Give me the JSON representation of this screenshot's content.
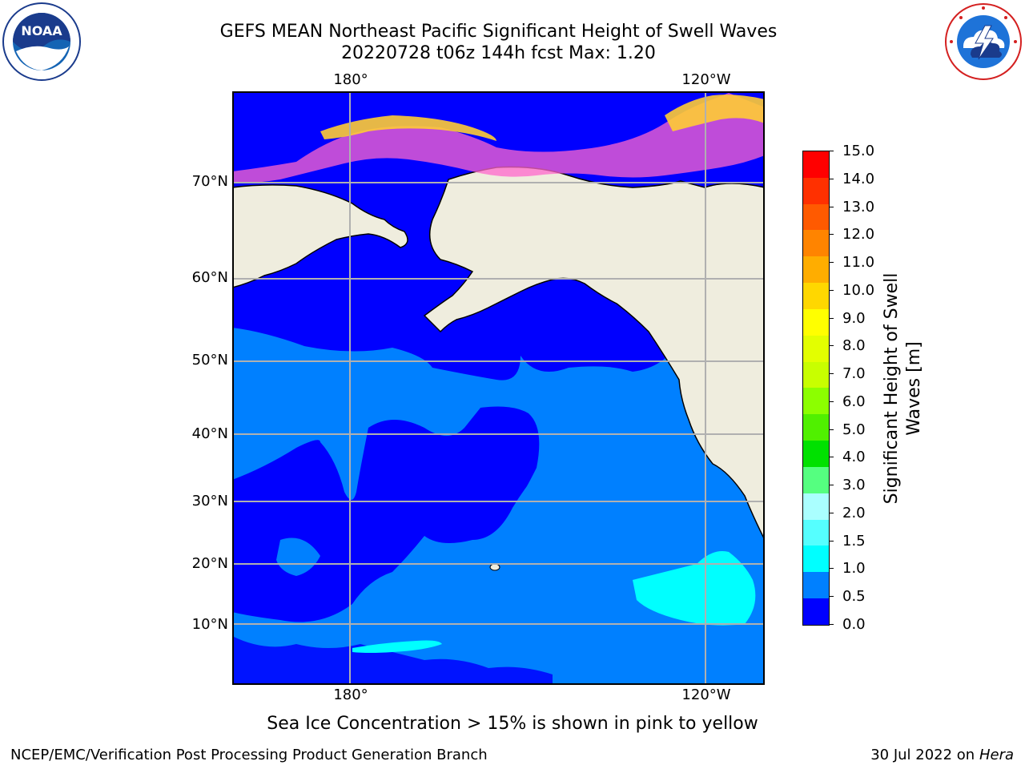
{
  "header": {
    "title_line1": "GEFS MEAN Northeast Pacific Significant Height of Swell Waves",
    "title_line2": "20220728 t06z 144h fcst   Max: 1.20"
  },
  "map": {
    "lon_labels_top": [
      "180°",
      "120°W"
    ],
    "lon_labels_bottom": [
      "180°",
      "120°W"
    ],
    "lat_labels": [
      "70°N",
      "60°N",
      "50°N",
      "40°N",
      "30°N",
      "20°N",
      "10°N"
    ],
    "colors": {
      "land": "#efedde",
      "ocean_low": "#0000ff",
      "ocean_mid": "#0080ff",
      "ocean_high": "#00ffff",
      "grid": "#b0b0b0"
    }
  },
  "colorbar": {
    "label": "Significant Height of Swell Waves [m]",
    "ticks": [
      "15.0",
      "14.0",
      "13.0",
      "12.0",
      "11.0",
      "10.0",
      "9.0",
      "8.0",
      "7.0",
      "6.0",
      "5.0",
      "4.0",
      "3.0",
      "2.0",
      "1.5",
      "1.0",
      "0.5",
      "0.0"
    ],
    "segment_colors": [
      "#ff0000",
      "#ff3000",
      "#ff5a00",
      "#ff8400",
      "#ffad00",
      "#ffd700",
      "#ffff00",
      "#e3ff00",
      "#c8ff00",
      "#8cff00",
      "#50f000",
      "#00e100",
      "#55ff80",
      "#aaffff",
      "#55ffff",
      "#00ffff",
      "#0080ff",
      "#0000ff"
    ]
  },
  "caption": "Sea Ice Concentration > 15% is shown in pink to yellow",
  "footer": {
    "left": "NCEP/EMC/Verification Post Processing Product Generation Branch",
    "right_date": "30 Jul 2022 on",
    "right_host": "Hera"
  },
  "logos": {
    "noaa_text": "NOAA",
    "noaa_ring": "NATIONAL OCEANIC AND ATMOSPHERIC ADMINISTRATION · U.S. DEPARTMENT OF COMMERCE",
    "nws_ring": "NATIONAL WEATHER SERVICE"
  }
}
